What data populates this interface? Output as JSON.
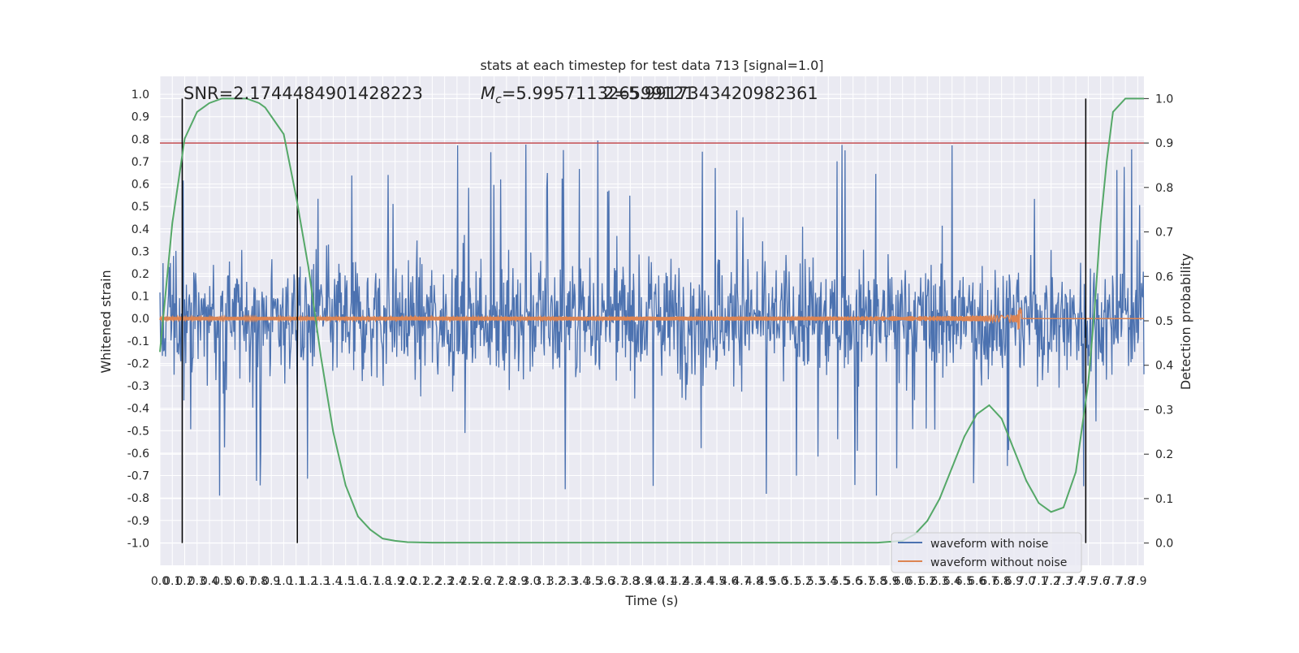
{
  "chart_data": {
    "type": "line",
    "title": "stats at each timestep for test data 713 [signal=1.0]",
    "xlabel": "Time (s)",
    "ylabel": "Whitened strain",
    "y2label": "Detection probability",
    "xlim": [
      0.0,
      7.95
    ],
    "ylim": [
      -1.1,
      1.08
    ],
    "y2lim": [
      -0.05,
      1.05
    ],
    "x_ticks": [
      "0.0",
      "0.1",
      "0.2",
      "0.3",
      "0.4",
      "0.5",
      "0.6",
      "0.7",
      "0.8",
      "0.9",
      "1.0",
      "1.1",
      "1.2",
      "1.3",
      "1.4",
      "1.5",
      "1.6",
      "1.7",
      "1.8",
      "1.9",
      "2.0",
      "2.1",
      "2.2",
      "2.3",
      "2.4",
      "2.5",
      "2.6",
      "2.7",
      "2.8",
      "2.9",
      "3.0",
      "3.1",
      "3.2",
      "3.3",
      "3.4",
      "3.5",
      "3.6",
      "3.7",
      "3.8",
      "3.9",
      "4.0",
      "4.1",
      "4.2",
      "4.3",
      "4.4",
      "4.5",
      "4.6",
      "4.7",
      "4.8",
      "4.9",
      "5.0",
      "5.1",
      "5.2",
      "5.3",
      "5.4",
      "5.5",
      "5.6",
      "5.7",
      "5.8",
      "5.9",
      "6.0",
      "6.1",
      "6.2",
      "6.3",
      "6.4",
      "6.5",
      "6.6",
      "6.7",
      "6.8",
      "6.9",
      "7.0",
      "7.1",
      "7.2",
      "7.3",
      "7.4",
      "7.5",
      "7.6",
      "7.7",
      "7.8",
      "7.9"
    ],
    "y_ticks": [
      "1.0",
      "0.9",
      "0.8",
      "0.7",
      "0.6",
      "0.5",
      "0.4",
      "0.3",
      "0.2",
      "0.1",
      "0.0",
      "-0.1",
      "-0.2",
      "-0.3",
      "-0.4",
      "-0.5",
      "-0.6",
      "-0.7",
      "-0.8",
      "-0.9",
      "-1.0"
    ],
    "y2_ticks": [
      "1.0",
      "0.9",
      "0.8",
      "0.7",
      "0.6",
      "0.5",
      "0.4",
      "0.3",
      "0.2",
      "0.1",
      "0.0"
    ],
    "annotations": {
      "snr": "SNR=2.1744484901428223",
      "mc_symbol": "M",
      "mc_sub": "c",
      "mc_value": "=5.995711326599121",
      "overlap": "2=5.9917343420982361"
    },
    "series": [
      {
        "name": "waveform with noise",
        "color": "#4c72b0",
        "noise_envelope": 0.35,
        "peak": 0.94,
        "trough": -1.0
      },
      {
        "name": "waveform without noise",
        "color": "#dd8452",
        "x_start": 0.0,
        "x_merger": 6.96,
        "peak_amplitude": 0.05
      }
    ],
    "probability": {
      "color": "#55a868",
      "x": [
        0.0,
        0.1,
        0.2,
        0.3,
        0.4,
        0.5,
        0.6,
        0.7,
        0.8,
        0.85,
        0.9,
        1.0,
        1.05,
        1.1,
        1.2,
        1.3,
        1.4,
        1.5,
        1.6,
        1.7,
        1.8,
        1.9,
        2.0,
        2.2,
        2.5,
        3.0,
        4.0,
        5.0,
        5.8,
        6.0,
        6.1,
        6.2,
        6.3,
        6.4,
        6.5,
        6.6,
        6.7,
        6.8,
        6.9,
        7.0,
        7.1,
        7.2,
        7.3,
        7.4,
        7.5,
        7.55,
        7.6,
        7.65,
        7.7,
        7.8,
        7.95
      ],
      "y": [
        0.43,
        0.72,
        0.91,
        0.97,
        0.99,
        1.0,
        1.0,
        1.0,
        0.99,
        0.98,
        0.96,
        0.92,
        0.85,
        0.78,
        0.62,
        0.42,
        0.25,
        0.13,
        0.06,
        0.03,
        0.01,
        0.005,
        0.002,
        0.001,
        0.001,
        0.001,
        0.001,
        0.001,
        0.001,
        0.005,
        0.02,
        0.05,
        0.1,
        0.17,
        0.24,
        0.29,
        0.31,
        0.28,
        0.21,
        0.14,
        0.09,
        0.07,
        0.08,
        0.16,
        0.36,
        0.52,
        0.72,
        0.86,
        0.97,
        1.0,
        1.0
      ]
    },
    "threshold": {
      "value": 0.9,
      "color": "#c44e52"
    },
    "vlines": [
      0.18,
      1.11,
      7.48
    ],
    "legend_position": "lower-right",
    "grid": true
  }
}
